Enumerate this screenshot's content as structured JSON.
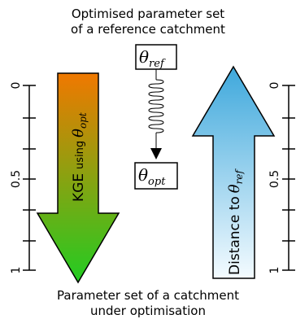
{
  "header": {
    "line1": "Optimised parameter set",
    "line2": "of a reference catchment"
  },
  "footer": {
    "line1": "Parameter set of a catchment",
    "line2": "under optimisation"
  },
  "ref_box": {
    "theta": "θ",
    "sub": "ref"
  },
  "opt_box": {
    "theta": "θ",
    "sub": "opt"
  },
  "kge_arrow": {
    "text": "KGE",
    "using": "using",
    "theta": "θ",
    "sub": "opt",
    "color_top": "#f07800",
    "color_bottom": "#22cc22"
  },
  "dist_arrow": {
    "text": "Distance to",
    "theta": "θ",
    "sub": "ref",
    "color_top": "#3ea8dc",
    "color_bottom": "#f4fbff"
  },
  "left_axis": {
    "ticks": [
      "0",
      "0.5",
      "1"
    ],
    "color": "#000000"
  },
  "right_axis": {
    "ticks": [
      "0",
      "0.5",
      "1"
    ]
  }
}
